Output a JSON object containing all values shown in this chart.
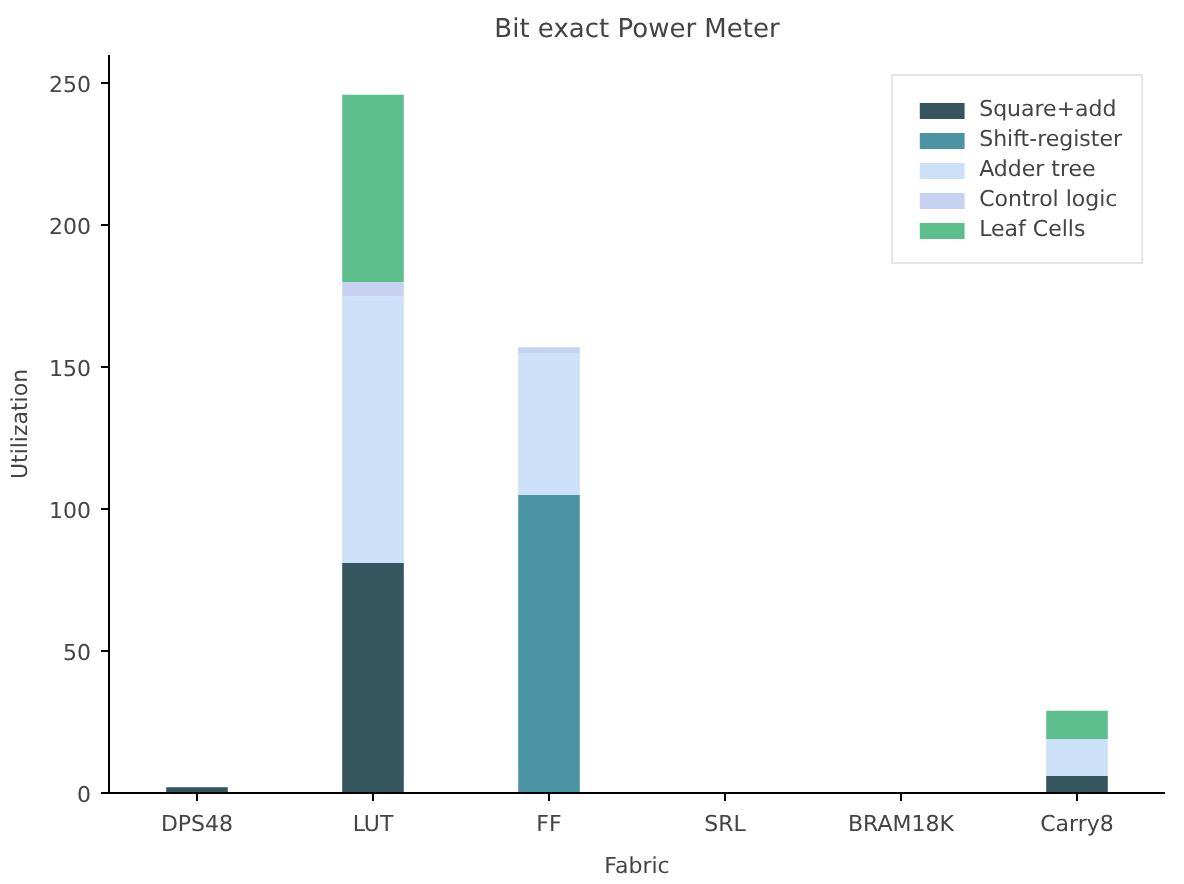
{
  "chart_data": {
    "type": "bar",
    "title": "Bit exact Power Meter",
    "xlabel": "Fabric",
    "ylabel": "Utilization",
    "categories": [
      "DPS48",
      "LUT",
      "FF",
      "SRL",
      "BRAM18K",
      "Carry8"
    ],
    "stacked": true,
    "ylim": [
      0,
      260
    ],
    "yticks": [
      0,
      50,
      100,
      150,
      200,
      250
    ],
    "grid": false,
    "legend": "top right",
    "series": [
      {
        "name": "Square+add",
        "color": "#35565f",
        "values": [
          2,
          81,
          0,
          0,
          0,
          6
        ]
      },
      {
        "name": "Shift-register",
        "color": "#4a94a3",
        "values": [
          0,
          0,
          105,
          0,
          0,
          0
        ]
      },
      {
        "name": "Adder tree",
        "color": "#cce0f7",
        "values": [
          0,
          94,
          50,
          0,
          0,
          13
        ]
      },
      {
        "name": "Control logic",
        "color": "#c7d2f2",
        "values": [
          0,
          5,
          2,
          0,
          0,
          0
        ]
      },
      {
        "name": "Leaf Cells",
        "color": "#5dbf8c",
        "values": [
          0,
          66,
          0,
          0,
          0,
          10
        ]
      }
    ]
  }
}
